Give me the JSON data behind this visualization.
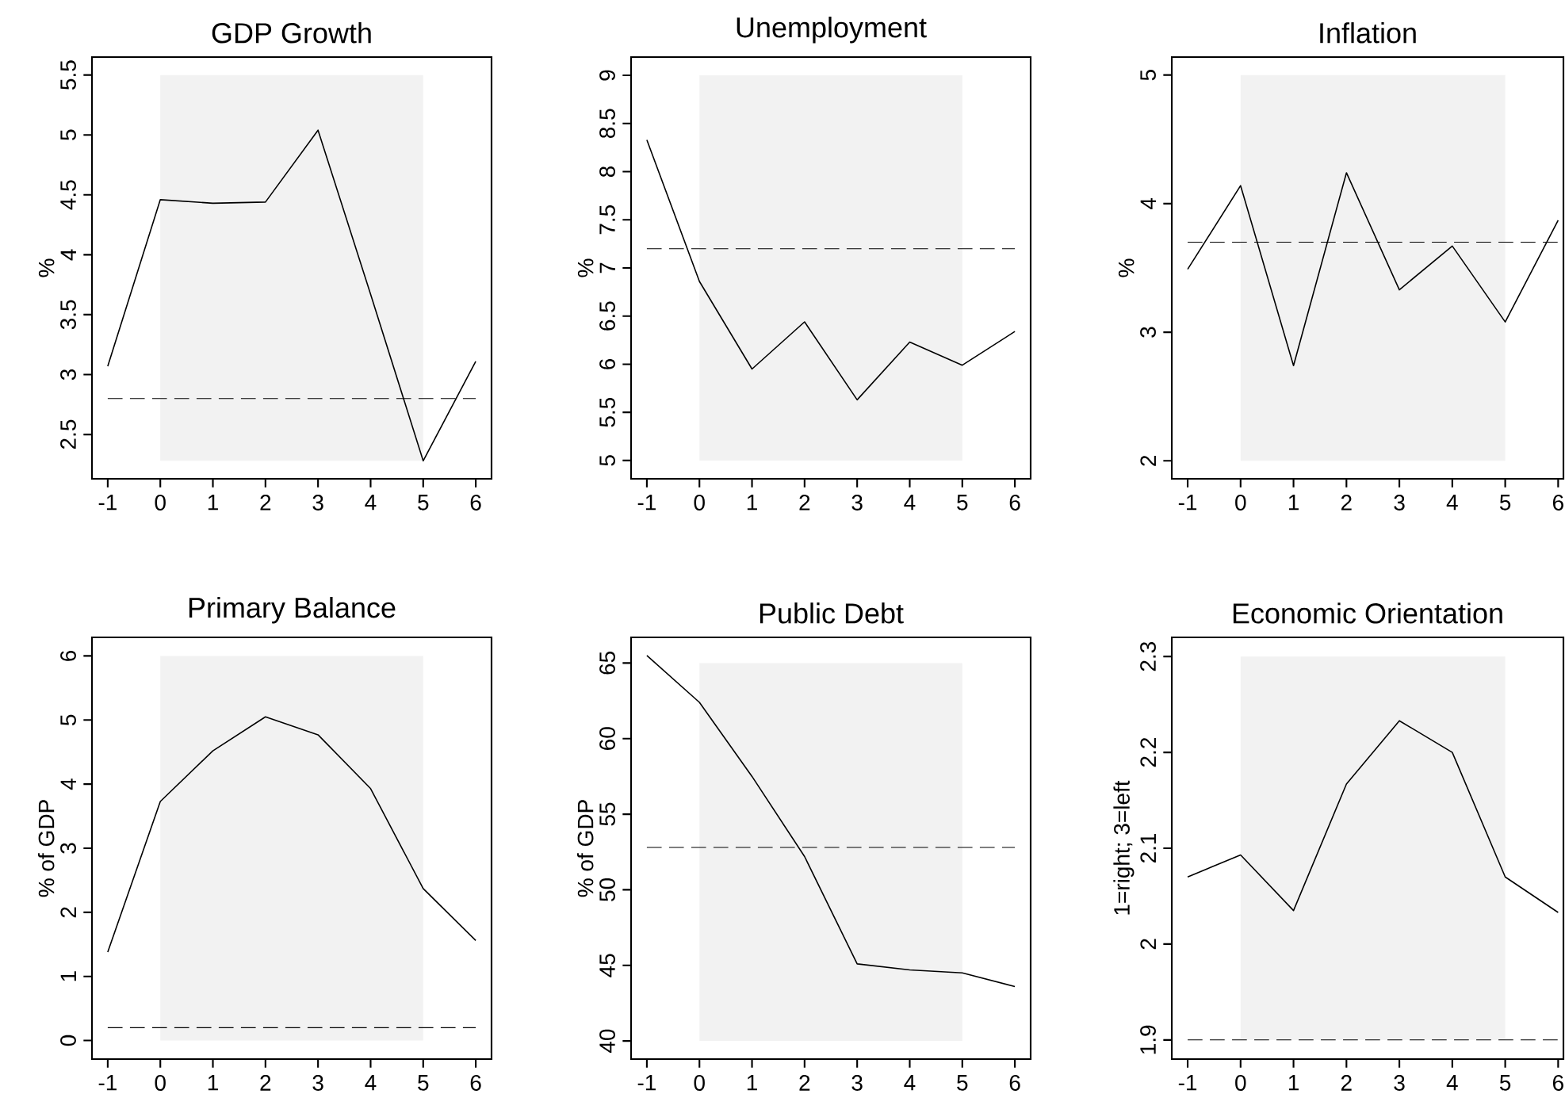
{
  "chart_data": [
    {
      "type": "line",
      "title": "GDP Growth",
      "ylabel": "%",
      "x": [
        -1,
        0,
        1,
        2,
        3,
        4,
        5,
        6
      ],
      "values": [
        3.07,
        4.46,
        4.43,
        4.44,
        5.04,
        3.67,
        2.28,
        3.11
      ],
      "color": "#000000",
      "xlim": [
        -1.3,
        6.3
      ],
      "ylim": [
        2.13,
        5.65
      ],
      "xticks": [
        -1,
        0,
        1,
        2,
        3,
        4,
        5,
        6
      ],
      "yticks": [
        2.5,
        3,
        3.5,
        4,
        4.5,
        5,
        5.5
      ],
      "ref_lines": [
        {
          "axis": "y",
          "value": 2.8,
          "line_style": "dashed",
          "color": "#000000"
        }
      ],
      "bands": [
        {
          "axis": "x",
          "from": 0,
          "to": 5,
          "color": "#f2f2f2"
        }
      ]
    },
    {
      "type": "line",
      "title": "Unemployment",
      "ylabel": "%",
      "x": [
        -1,
        0,
        1,
        2,
        3,
        4,
        5,
        6
      ],
      "values": [
        8.33,
        6.86,
        5.95,
        6.44,
        5.63,
        6.23,
        5.99,
        6.34
      ],
      "color": "#000000",
      "xlim": [
        -1.3,
        6.3
      ],
      "ylim": [
        4.81,
        9.19
      ],
      "xticks": [
        -1,
        0,
        1,
        2,
        3,
        4,
        5,
        6
      ],
      "yticks": [
        5,
        5.5,
        6,
        6.5,
        7,
        7.5,
        8,
        8.5,
        9
      ],
      "ref_lines": [
        {
          "axis": "y",
          "value": 7.2,
          "line_style": "dashed",
          "color": "#000000"
        }
      ],
      "bands": [
        {
          "axis": "x",
          "from": 0,
          "to": 5,
          "color": "#f2f2f2"
        }
      ]
    },
    {
      "type": "line",
      "title": "Inflation",
      "ylabel": "%",
      "x": [
        -1,
        0,
        1,
        2,
        3,
        4,
        5,
        6
      ],
      "values": [
        3.49,
        4.14,
        2.74,
        4.24,
        3.33,
        3.67,
        3.08,
        3.87
      ],
      "color": "#000000",
      "xlim": [
        -1.3,
        6.1
      ],
      "ylim": [
        1.86,
        5.14
      ],
      "xticks": [
        -1,
        0,
        1,
        2,
        3,
        4,
        5,
        6
      ],
      "yticks": [
        2,
        3,
        4,
        5
      ],
      "ref_lines": [
        {
          "axis": "y",
          "value": 3.7,
          "line_style": "dashed",
          "color": "#000000"
        }
      ],
      "bands": [
        {
          "axis": "x",
          "from": 0,
          "to": 5,
          "color": "#f2f2f2"
        }
      ]
    },
    {
      "type": "line",
      "title": "Primary Balance",
      "ylabel": "% of GDP",
      "x": [
        -1,
        0,
        1,
        2,
        3,
        4,
        5,
        6
      ],
      "values": [
        1.38,
        3.73,
        4.52,
        5.05,
        4.77,
        3.93,
        2.37,
        1.56
      ],
      "color": "#000000",
      "xlim": [
        -1.3,
        6.3
      ],
      "ylim": [
        -0.29,
        6.29
      ],
      "xticks": [
        -1,
        0,
        1,
        2,
        3,
        4,
        5,
        6
      ],
      "yticks": [
        0,
        1,
        2,
        3,
        4,
        5,
        6
      ],
      "ref_lines": [
        {
          "axis": "y",
          "value": 0.2,
          "line_style": "dashed",
          "color": "#000000"
        }
      ],
      "bands": [
        {
          "axis": "x",
          "from": 0,
          "to": 5,
          "color": "#f2f2f2"
        }
      ]
    },
    {
      "type": "line",
      "title": "Public Debt",
      "ylabel": "% of GDP",
      "x": [
        -1,
        0,
        1,
        2,
        3,
        4,
        5,
        6
      ],
      "values": [
        65.5,
        62.4,
        57.5,
        52.2,
        45.1,
        44.7,
        44.5,
        43.6
      ],
      "color": "#000000",
      "xlim": [
        -1.3,
        6.3
      ],
      "ylim": [
        38.8,
        66.7
      ],
      "xticks": [
        -1,
        0,
        1,
        2,
        3,
        4,
        5,
        6
      ],
      "yticks": [
        40,
        45,
        50,
        55,
        60,
        65
      ],
      "ref_lines": [
        {
          "axis": "y",
          "value": 52.8,
          "line_style": "dashed",
          "color": "#000000"
        }
      ],
      "bands": [
        {
          "axis": "x",
          "from": 0,
          "to": 5,
          "color": "#f2f2f2"
        }
      ]
    },
    {
      "type": "line",
      "title": "Economic Orientation",
      "ylabel": "1=right; 3=left",
      "x": [
        -1,
        0,
        1,
        2,
        3,
        4,
        5,
        6
      ],
      "values": [
        2.07,
        2.093,
        2.035,
        2.167,
        2.233,
        2.2,
        2.07,
        2.033
      ],
      "color": "#000000",
      "xlim": [
        -1.3,
        6.1
      ],
      "ylim": [
        1.88,
        2.32
      ],
      "xticks": [
        -1,
        0,
        1,
        2,
        3,
        4,
        5,
        6
      ],
      "yticks": [
        1.9,
        2,
        2.1,
        2.2,
        2.3
      ],
      "ref_lines": [
        {
          "axis": "y",
          "value": 1.9,
          "line_style": "dashed",
          "color": "#000000"
        }
      ],
      "bands": [
        {
          "axis": "x",
          "from": 0,
          "to": 5,
          "color": "#f2f2f2"
        }
      ]
    }
  ]
}
